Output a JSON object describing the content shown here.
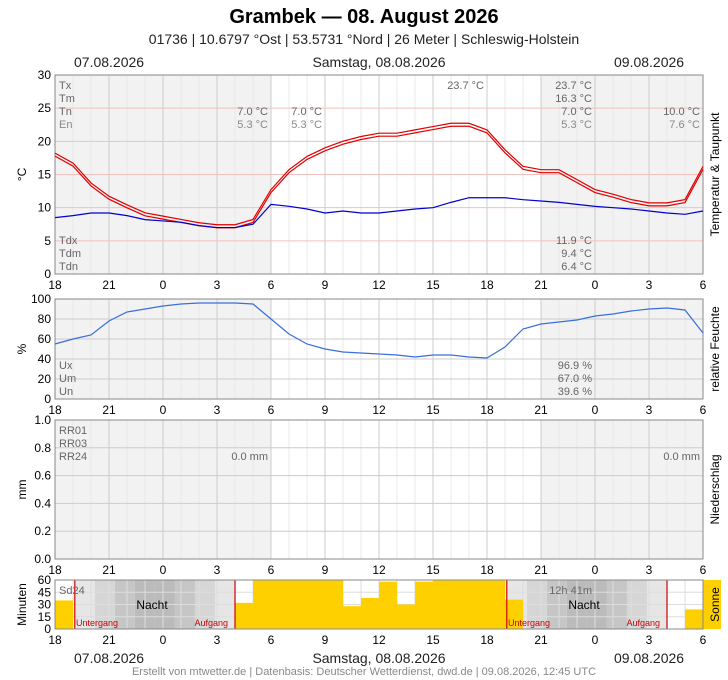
{
  "header": {
    "title": "Grambek  —  08. August 2026",
    "subtitle": "01736  |  10.6797 °Ost  |  53.5731 °Nord  |  26 Meter  |  Schleswig-Holstein",
    "date_left": "07.08.2026",
    "date_center": "Samstag, 08.08.2026",
    "date_right": "09.08.2026"
  },
  "footer": "Erstellt von mtwetter.de | Datenbasis: Deutscher Wetterdienst, dwd.de | 09.08.2026, 12:45 UTC",
  "colors": {
    "temp": "#e00000",
    "dew": "#0000cc",
    "humidity": "#3a6fd8",
    "sun": "#ffd000",
    "night": "#bbbbbb",
    "marker": "#d00000",
    "grid": "#dddddd",
    "label_gray": "#666666"
  },
  "x_ticks": [
    "18",
    "21",
    "0",
    "3",
    "6",
    "9",
    "12",
    "15",
    "18",
    "21",
    "0",
    "3",
    "6"
  ],
  "chart_data": [
    {
      "type": "line",
      "ylabel": "°C",
      "side_label": "Temperatur & Taupunkt",
      "ylim": [
        0,
        30
      ],
      "yticks": [
        "0",
        "5",
        "10",
        "15",
        "20",
        "25",
        "30"
      ],
      "x_hours": [
        -6,
        -5,
        -4,
        -3,
        -2,
        -1,
        0,
        1,
        2,
        3,
        4,
        5,
        6,
        7,
        8,
        9,
        10,
        11,
        12,
        13,
        14,
        15,
        16,
        17,
        18,
        19,
        20,
        21,
        22,
        23,
        24,
        25,
        26,
        27,
        28,
        29,
        30
      ],
      "series": [
        {
          "values": [
            18,
            16.5,
            13.5,
            11.5,
            10.2,
            9,
            8.5,
            8,
            7.5,
            7.2,
            7.2,
            8,
            12.5,
            15.5,
            17.5,
            18.8,
            19.8,
            20.5,
            21,
            21,
            21.5,
            22,
            22.5,
            22.5,
            21.5,
            18.5,
            16,
            15.5,
            15.5,
            14,
            12.5,
            11.8,
            11,
            10.5,
            10.5,
            11,
            16
          ]
        },
        {
          "values": [
            8.5,
            8.8,
            9.2,
            9.2,
            8.8,
            8.2,
            8,
            7.8,
            7.3,
            7,
            7,
            7.5,
            10.5,
            10.2,
            9.8,
            9.2,
            9.5,
            9.2,
            9.2,
            9.5,
            9.8,
            10,
            10.8,
            11.5,
            11.5,
            11.5,
            11.2,
            11,
            10.8,
            10.5,
            10.2,
            10,
            9.8,
            9.5,
            9.2,
            9,
            9.5
          ]
        }
      ],
      "stats_labels": [
        "Tx",
        "Tm",
        "Tn",
        "En"
      ],
      "stats_right": [
        "23.7 °C",
        "16.3 °C",
        "7.0 °C",
        "5.3 °C"
      ],
      "stats_right2": [
        "10.0 °C",
        "7.6 °C"
      ],
      "stats_left_a": [
        "7.0 °C",
        "5.3 °C"
      ],
      "stats_left_b": [
        "7.0 °C",
        "5.3 °C"
      ],
      "peak_label": "23.7 °C",
      "dew_labels": [
        "Tdx",
        "Tdm",
        "Tdn"
      ],
      "dew_values": [
        "11.9 °C",
        "9.4 °C",
        "6.4 °C"
      ]
    },
    {
      "type": "line",
      "ylabel": "%",
      "side_label": "relative Feuchte",
      "ylim": [
        0,
        100
      ],
      "yticks": [
        "0",
        "20",
        "40",
        "60",
        "80",
        "100"
      ],
      "series": [
        {
          "values": [
            55,
            60,
            64,
            78,
            87,
            90,
            93,
            95,
            96,
            96,
            96,
            95,
            80,
            65,
            55,
            50,
            47,
            46,
            45,
            44,
            42,
            44,
            44,
            42,
            41,
            52,
            70,
            75,
            77,
            79,
            83,
            85,
            88,
            90,
            91,
            89,
            66
          ]
        }
      ],
      "stats_labels": [
        "Ux",
        "Um",
        "Un"
      ],
      "stats_values": [
        "96.9 %",
        "67.0 %",
        "39.6 %"
      ]
    },
    {
      "type": "bar",
      "ylabel": "mm",
      "side_label": "Niederschlag",
      "ylim": [
        0,
        1
      ],
      "yticks": [
        "0.0",
        "0.2",
        "0.4",
        "0.6",
        "0.8",
        "1.0"
      ],
      "values": [],
      "stats_labels": [
        "RR01",
        "RR03",
        "RR24"
      ],
      "stats_mid": "0.0 mm",
      "stats_right": "0.0 mm"
    },
    {
      "type": "bar",
      "ylabel": "Minuten",
      "side_label": "Sonne",
      "ylim": [
        0,
        60
      ],
      "yticks": [
        "0",
        "15",
        "30",
        "45",
        "60"
      ],
      "values": [
        35,
        0,
        0,
        0,
        0,
        0,
        0,
        0,
        0,
        0,
        32,
        60,
        60,
        60,
        60,
        60,
        28,
        38,
        58,
        30,
        58,
        60,
        60,
        60,
        60,
        36,
        0,
        0,
        0,
        0,
        0,
        0,
        0,
        0,
        0,
        24,
        60
      ],
      "sd_label": "Sd24",
      "sun_total": "12h 41m",
      "night_label": "Nacht",
      "sunset_label": "Untergang",
      "sunrise_label": "Aufgang"
    }
  ]
}
